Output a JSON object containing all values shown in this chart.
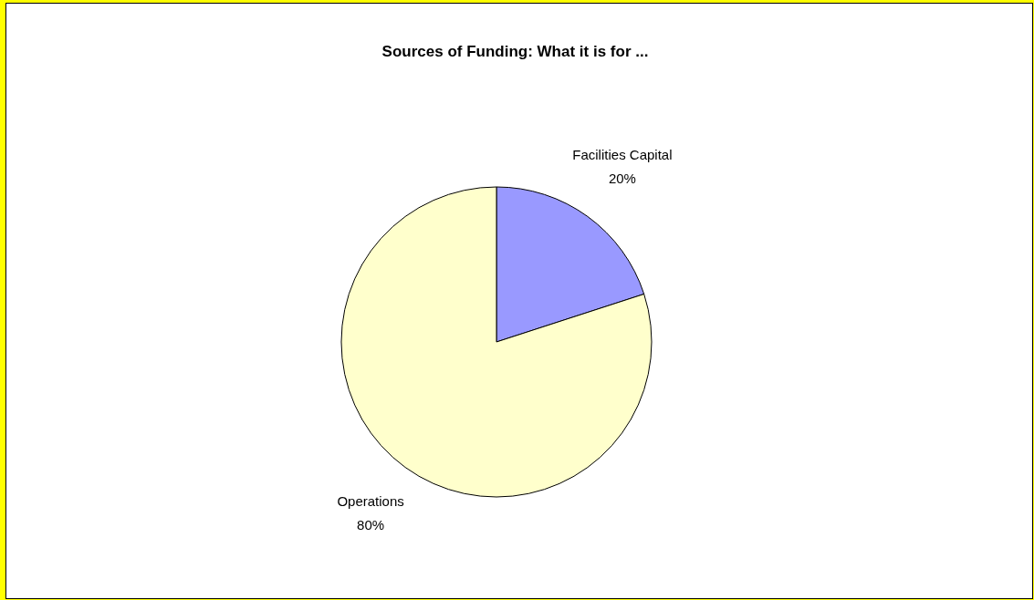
{
  "chart_data": {
    "type": "pie",
    "title": "Sources of Funding: What it is for ...",
    "categories": [
      "Facilities Capital",
      "Operations"
    ],
    "values": [
      20,
      80
    ],
    "colors": [
      "#9999ff",
      "#ffffcc"
    ],
    "value_labels": [
      "20%",
      "80%"
    ],
    "legend": false
  }
}
